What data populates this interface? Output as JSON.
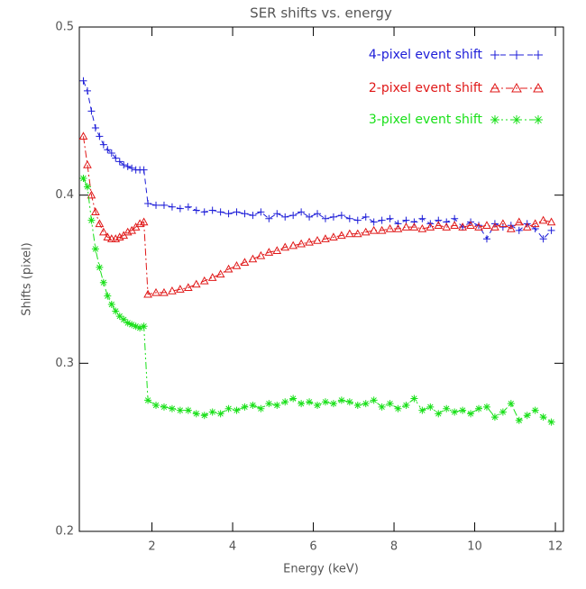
{
  "chart_data": {
    "type": "line",
    "title": "SER shifts vs. energy",
    "x_label": "Energy (keV)",
    "y_label": "Shifts (pixel)",
    "xlim": [
      0.2,
      12.2
    ],
    "ylim": [
      0.2,
      0.5
    ],
    "xticks": [
      2,
      4,
      6,
      8,
      10,
      12
    ],
    "yticks": [
      0.2,
      0.3,
      0.4,
      0.5
    ],
    "legend": "upper right",
    "x": [
      0.3,
      0.4,
      0.5,
      0.6,
      0.7,
      0.8,
      0.9,
      1.0,
      1.1,
      1.2,
      1.3,
      1.4,
      1.5,
      1.6,
      1.7,
      1.8,
      1.9,
      2.1,
      2.3,
      2.5,
      2.7,
      2.9,
      3.1,
      3.3,
      3.5,
      3.7,
      3.9,
      4.1,
      4.3,
      4.5,
      4.7,
      4.9,
      5.1,
      5.3,
      5.5,
      5.7,
      5.9,
      6.1,
      6.3,
      6.5,
      6.7,
      6.9,
      7.1,
      7.3,
      7.5,
      7.7,
      7.9,
      8.1,
      8.3,
      8.5,
      8.7,
      8.9,
      9.1,
      9.3,
      9.5,
      9.7,
      9.9,
      10.1,
      10.3,
      10.5,
      10.7,
      10.9,
      11.1,
      11.3,
      11.5,
      11.7,
      11.9
    ],
    "series": [
      {
        "name": "4-pixel event shift",
        "color": "#1c1cd8",
        "marker": "plus",
        "dash": "6 4",
        "values": [
          0.468,
          0.462,
          0.45,
          0.44,
          0.435,
          0.43,
          0.427,
          0.425,
          0.422,
          0.42,
          0.418,
          0.417,
          0.416,
          0.415,
          0.415,
          0.415,
          0.395,
          0.394,
          0.394,
          0.393,
          0.392,
          0.393,
          0.391,
          0.39,
          0.391,
          0.39,
          0.389,
          0.39,
          0.389,
          0.388,
          0.39,
          0.386,
          0.389,
          0.387,
          0.388,
          0.39,
          0.387,
          0.389,
          0.386,
          0.387,
          0.388,
          0.386,
          0.385,
          0.387,
          0.384,
          0.385,
          0.386,
          0.383,
          0.385,
          0.384,
          0.386,
          0.383,
          0.385,
          0.384,
          0.386,
          0.381,
          0.384,
          0.382,
          0.374,
          0.383,
          0.381,
          0.382,
          0.379,
          0.383,
          0.38,
          0.374,
          0.379
        ]
      },
      {
        "name": "2-pixel event shift",
        "color": "#e01818",
        "marker": "triangle",
        "dash": "8 3 2 3",
        "values": [
          0.435,
          0.418,
          0.4,
          0.39,
          0.383,
          0.378,
          0.375,
          0.374,
          0.374,
          0.375,
          0.376,
          0.378,
          0.379,
          0.381,
          0.383,
          0.384,
          0.341,
          0.342,
          0.342,
          0.343,
          0.344,
          0.345,
          0.347,
          0.349,
          0.351,
          0.353,
          0.356,
          0.358,
          0.36,
          0.362,
          0.364,
          0.366,
          0.367,
          0.369,
          0.37,
          0.371,
          0.372,
          0.373,
          0.374,
          0.375,
          0.376,
          0.377,
          0.377,
          0.378,
          0.379,
          0.379,
          0.38,
          0.38,
          0.381,
          0.381,
          0.38,
          0.381,
          0.382,
          0.381,
          0.382,
          0.381,
          0.382,
          0.381,
          0.382,
          0.381,
          0.383,
          0.38,
          0.384,
          0.381,
          0.383,
          0.385,
          0.384
        ]
      },
      {
        "name": "3-pixel event shift",
        "color": "#18e018",
        "marker": "asterisk",
        "dash": "8 3 2 3 2 3",
        "values": [
          0.41,
          0.405,
          0.385,
          0.368,
          0.357,
          0.348,
          0.34,
          0.335,
          0.331,
          0.328,
          0.326,
          0.324,
          0.323,
          0.322,
          0.321,
          0.322,
          0.278,
          0.275,
          0.274,
          0.273,
          0.272,
          0.272,
          0.27,
          0.269,
          0.271,
          0.27,
          0.273,
          0.272,
          0.274,
          0.275,
          0.273,
          0.276,
          0.275,
          0.277,
          0.279,
          0.276,
          0.277,
          0.275,
          0.277,
          0.276,
          0.278,
          0.277,
          0.275,
          0.276,
          0.278,
          0.274,
          0.276,
          0.273,
          0.275,
          0.279,
          0.272,
          0.274,
          0.27,
          0.273,
          0.271,
          0.272,
          0.27,
          0.273,
          0.274,
          0.268,
          0.271,
          0.276,
          0.266,
          0.269,
          0.272,
          0.268,
          0.265
        ]
      }
    ]
  }
}
